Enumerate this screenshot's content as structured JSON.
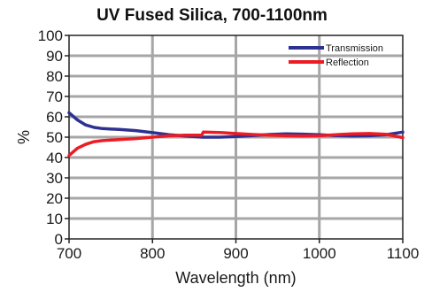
{
  "chart_data": {
    "type": "line",
    "title": "UV Fused Silica, 700-1100nm",
    "xlabel": "Wavelength (nm)",
    "ylabel": "%",
    "xlim": [
      700,
      1100
    ],
    "ylim": [
      0,
      100
    ],
    "x_ticks": [
      "700",
      "800",
      "900",
      "1000",
      "1100"
    ],
    "y_ticks": [
      "0",
      "10",
      "20",
      "30",
      "40",
      "50",
      "60",
      "70",
      "80",
      "90",
      "100"
    ],
    "grid": true,
    "legend_position": "top-right",
    "series": [
      {
        "name": "Transmission",
        "color": "#2e3192",
        "x": [
          700,
          710,
          720,
          730,
          740,
          760,
          780,
          800,
          820,
          840,
          860,
          880,
          900,
          920,
          940,
          960,
          980,
          1000,
          1020,
          1040,
          1060,
          1080,
          1100
        ],
        "y": [
          62,
          58.5,
          56,
          54.8,
          54.2,
          53.8,
          53.2,
          52.2,
          51.2,
          50.5,
          50.0,
          50.0,
          50.3,
          50.8,
          51.3,
          51.6,
          51.5,
          51.2,
          50.8,
          50.6,
          50.7,
          51.2,
          52.5
        ]
      },
      {
        "name": "Reflection",
        "color": "#ed1c24",
        "x": [
          700,
          710,
          720,
          730,
          740,
          760,
          780,
          800,
          820,
          840,
          859,
          861,
          880,
          900,
          920,
          940,
          960,
          980,
          1000,
          1020,
          1040,
          1060,
          1080,
          1100
        ],
        "y": [
          41,
          44.5,
          46.5,
          47.8,
          48.3,
          48.8,
          49.3,
          50.0,
          50.7,
          51.0,
          51.0,
          52.5,
          52.3,
          51.8,
          51.3,
          51.0,
          50.7,
          50.6,
          50.7,
          51.2,
          51.6,
          51.8,
          51.4,
          49.8
        ]
      }
    ]
  }
}
